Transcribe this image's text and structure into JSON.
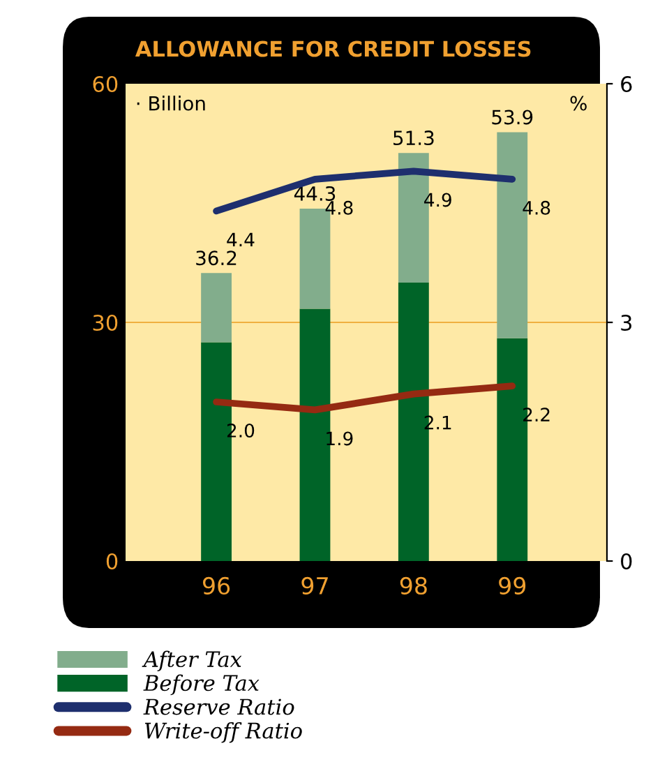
{
  "chart_data": {
    "type": "bar",
    "title": "ALLOWANCE FOR CREDIT LOSSES",
    "ylabel": "· Billion",
    "y2label": "%",
    "categories": [
      "96",
      "97",
      "98",
      "99"
    ],
    "stacked": true,
    "series": [
      {
        "name": "Before Tax",
        "color": "#006428",
        "values": [
          27.5,
          31.7,
          35.0,
          28.0
        ]
      },
      {
        "name": "After Tax",
        "color": "#82ad8c",
        "values": [
          8.7,
          12.6,
          16.3,
          25.9
        ]
      },
      {
        "name": "Reserve Ratio",
        "type": "line",
        "axis": "y2",
        "color": "#1e2f6e",
        "values": [
          4.4,
          4.8,
          4.9,
          4.8
        ],
        "value_labels": [
          "4.4",
          "4.8",
          "4.9",
          "4.8"
        ]
      },
      {
        "name": "Write-off Ratio",
        "type": "line",
        "axis": "y2",
        "color": "#952a12",
        "values": [
          2.0,
          1.9,
          2.1,
          2.2
        ],
        "value_labels": [
          "2.0",
          "1.9",
          "2.1",
          "2.2"
        ]
      }
    ],
    "totals": [
      "36.2",
      "44.3",
      "51.3",
      "53.9"
    ],
    "ylim": [
      0,
      60
    ],
    "yticks": [
      0,
      30,
      60
    ],
    "y2lim": [
      0,
      6
    ],
    "y2ticks": [
      0,
      3,
      6
    ],
    "ref_lines": [
      {
        "axis": "y",
        "value": 30,
        "color": "#f0b040"
      }
    ],
    "legend": "bottom"
  }
}
